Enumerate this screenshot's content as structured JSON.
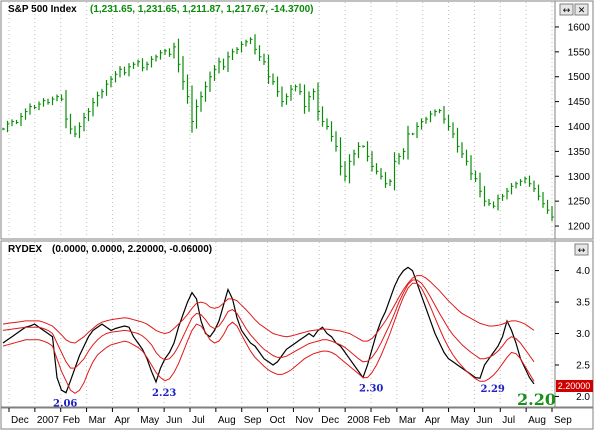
{
  "colors": {
    "price": "#0a8c0a",
    "indicator": "#000000",
    "bands": "#e01818",
    "grid": "#bdbdbd",
    "annotation": "#2020c8",
    "callout": "#1a8f1a",
    "last_value_bg": "#d00000"
  },
  "window_controls": {
    "top": [
      "↔",
      "✕"
    ],
    "bottom": [
      "↔"
    ]
  },
  "chart_data": [
    {
      "type": "line",
      "title_name": "S&P 500 Index",
      "title_values": "(1,231.65, 1,231.65, 1,211.87, 1,217.67, -14.3700)",
      "y_ticks": [
        1200,
        1250,
        1300,
        1350,
        1400,
        1450,
        1500,
        1550,
        1600
      ],
      "ylim": [
        1180,
        1622
      ],
      "grid": "vertical dotted",
      "series": [
        {
          "values": [
            1395,
            1405,
            1410,
            1408,
            1420,
            1430,
            1440,
            1438,
            1445,
            1452,
            1448,
            1455,
            1460,
            1455,
            1415,
            1395,
            1385,
            1400,
            1418,
            1430,
            1448,
            1462,
            1470,
            1485,
            1495,
            1505,
            1515,
            1508,
            1520,
            1525,
            1530,
            1518,
            1525,
            1535,
            1540,
            1548,
            1552,
            1545,
            1560,
            1525,
            1490,
            1460,
            1410,
            1440,
            1460,
            1480,
            1500,
            1515,
            1530,
            1520,
            1540,
            1550,
            1555,
            1565,
            1570,
            1575,
            1555,
            1540,
            1530,
            1500,
            1490,
            1470,
            1450,
            1460,
            1475,
            1480,
            1470,
            1440,
            1460,
            1470,
            1430,
            1410,
            1400,
            1380,
            1360,
            1320,
            1300,
            1330,
            1345,
            1360,
            1360,
            1340,
            1320,
            1310,
            1300,
            1285,
            1290,
            1330,
            1340,
            1350,
            1385,
            1385,
            1400,
            1410,
            1415,
            1425,
            1430,
            1432,
            1415,
            1400,
            1385,
            1360,
            1345,
            1330,
            1305,
            1295,
            1270,
            1250,
            1245,
            1240,
            1255,
            1260,
            1270,
            1280,
            1285,
            1290,
            1295,
            1285,
            1275,
            1260,
            1245,
            1232,
            1218
          ]
        }
      ]
    },
    {
      "type": "line",
      "title_name": "RYDEX",
      "title_values": "(0.0000, 0.0000, 2.20000, -0.06000)",
      "y_ticks": [
        2.0,
        2.5,
        3.0,
        3.5,
        4.0
      ],
      "ylim": [
        1.88,
        4.2
      ],
      "x_tick_labels": [
        "Dec",
        "2007",
        "Feb",
        "Mar",
        "Apr",
        "May",
        "Jun",
        "Jul",
        "Aug",
        "Sep",
        "Oct",
        "Nov",
        "Dec",
        "2008",
        "Feb",
        "Mar",
        "Apr",
        "May",
        "Jun",
        "Jul",
        "Aug",
        "Sep"
      ],
      "last_value": "2.20000",
      "callout": "2.20",
      "annotations": [
        {
          "text": "2.06",
          "x": 12.0,
          "y": 2.06
        },
        {
          "text": "2.23",
          "x": 34.0,
          "y": 2.23
        },
        {
          "text": "2.30",
          "x": 80.0,
          "y": 2.3
        },
        {
          "text": "2.29",
          "x": 107.0,
          "y": 2.29
        }
      ],
      "series": [
        {
          "values": [
            2.85,
            2.9,
            2.95,
            3.0,
            3.05,
            3.1,
            3.12,
            3.15,
            3.1,
            3.05,
            3.0,
            2.95,
            2.3,
            2.1,
            2.06,
            2.25,
            2.45,
            2.65,
            2.8,
            2.95,
            3.05,
            3.1,
            3.15,
            3.1,
            3.05,
            3.08,
            3.1,
            3.12,
            3.1,
            2.95,
            2.85,
            2.75,
            2.6,
            2.4,
            2.23,
            2.45,
            2.6,
            2.7,
            2.85,
            3.1,
            3.3,
            3.5,
            3.65,
            3.55,
            3.2,
            3.0,
            2.95,
            3.05,
            3.2,
            3.45,
            3.7,
            3.55,
            3.25,
            3.05,
            2.95,
            2.85,
            2.8,
            2.7,
            2.6,
            2.55,
            2.5,
            2.55,
            2.65,
            2.75,
            2.8,
            2.85,
            2.9,
            2.95,
            3.0,
            2.95,
            3.05,
            3.1,
            3.0,
            2.95,
            2.85,
            2.8,
            2.7,
            2.6,
            2.5,
            2.4,
            2.3,
            2.5,
            2.75,
            3.0,
            3.2,
            3.35,
            3.55,
            3.75,
            3.9,
            4.0,
            4.05,
            4.0,
            3.8,
            3.6,
            3.4,
            3.2,
            3.0,
            2.85,
            2.7,
            2.6,
            2.55,
            2.5,
            2.45,
            2.4,
            2.35,
            2.3,
            2.29,
            2.5,
            2.6,
            2.7,
            2.8,
            2.95,
            3.2,
            3.05,
            2.85,
            2.6,
            2.45,
            2.3,
            2.2
          ]
        },
        {
          "values": [
            3.15,
            3.16,
            3.17,
            3.18,
            3.19,
            3.2,
            3.2,
            3.2,
            3.2,
            3.18,
            3.15,
            3.12,
            3.05,
            2.98,
            2.9,
            2.86,
            2.85,
            2.9,
            2.95,
            3.02,
            3.08,
            3.14,
            3.18,
            3.2,
            3.22,
            3.23,
            3.24,
            3.25,
            3.24,
            3.22,
            3.2,
            3.18,
            3.15,
            3.1,
            3.05,
            3.02,
            3.0,
            3.02,
            3.08,
            3.15,
            3.22,
            3.3,
            3.4,
            3.48,
            3.5,
            3.48,
            3.42,
            3.4,
            3.42,
            3.48,
            3.55,
            3.55,
            3.52,
            3.45,
            3.38,
            3.3,
            3.22,
            3.15,
            3.1,
            3.05,
            3.0,
            2.98,
            2.96,
            2.95,
            2.96,
            2.98,
            3.0,
            3.02,
            3.04,
            3.05,
            3.06,
            3.07,
            3.07,
            3.06,
            3.05,
            3.04,
            3.02,
            3.0,
            2.96,
            2.92,
            2.88,
            2.88,
            2.92,
            3.0,
            3.1,
            3.2,
            3.32,
            3.45,
            3.58,
            3.7,
            3.8,
            3.88,
            3.92,
            3.92,
            3.88,
            3.82,
            3.75,
            3.68,
            3.6,
            3.52,
            3.45,
            3.38,
            3.32,
            3.28,
            3.24,
            3.2,
            3.16,
            3.14,
            3.12,
            3.12,
            3.13,
            3.15,
            3.18,
            3.2,
            3.2,
            3.18,
            3.15,
            3.1,
            3.05
          ]
        },
        {
          "values": [
            3.05,
            3.06,
            3.07,
            3.08,
            3.09,
            3.1,
            3.1,
            3.1,
            3.1,
            3.08,
            3.05,
            3.0,
            2.85,
            2.7,
            2.55,
            2.45,
            2.45,
            2.52,
            2.6,
            2.72,
            2.82,
            2.9,
            2.96,
            3.0,
            3.02,
            3.03,
            3.04,
            3.05,
            3.04,
            3.02,
            3.0,
            2.96,
            2.9,
            2.82,
            2.7,
            2.62,
            2.58,
            2.6,
            2.68,
            2.8,
            2.95,
            3.1,
            3.25,
            3.32,
            3.3,
            3.22,
            3.12,
            3.08,
            3.12,
            3.22,
            3.35,
            3.38,
            3.32,
            3.2,
            3.08,
            2.98,
            2.9,
            2.82,
            2.75,
            2.7,
            2.65,
            2.62,
            2.62,
            2.64,
            2.68,
            2.72,
            2.76,
            2.8,
            2.84,
            2.86,
            2.88,
            2.9,
            2.9,
            2.88,
            2.85,
            2.82,
            2.78,
            2.72,
            2.66,
            2.6,
            2.55,
            2.56,
            2.62,
            2.72,
            2.85,
            3.0,
            3.15,
            3.32,
            3.5,
            3.65,
            3.78,
            3.85,
            3.85,
            3.8,
            3.7,
            3.58,
            3.45,
            3.32,
            3.2,
            3.08,
            2.98,
            2.9,
            2.82,
            2.76,
            2.7,
            2.65,
            2.6,
            2.6,
            2.62,
            2.66,
            2.72,
            2.8,
            2.9,
            2.95,
            2.92,
            2.85,
            2.75,
            2.65,
            2.55
          ]
        },
        {
          "values": [
            2.8,
            2.82,
            2.84,
            2.86,
            2.88,
            2.9,
            2.9,
            2.9,
            2.9,
            2.88,
            2.85,
            2.8,
            2.6,
            2.4,
            2.25,
            2.1,
            2.05,
            2.1,
            2.22,
            2.4,
            2.55,
            2.66,
            2.72,
            2.78,
            2.82,
            2.84,
            2.86,
            2.88,
            2.86,
            2.82,
            2.78,
            2.72,
            2.62,
            2.5,
            2.38,
            2.3,
            2.25,
            2.28,
            2.38,
            2.52,
            2.7,
            2.88,
            3.05,
            3.15,
            3.12,
            3.02,
            2.9,
            2.85,
            2.88,
            2.98,
            3.12,
            3.18,
            3.12,
            2.98,
            2.85,
            2.72,
            2.62,
            2.55,
            2.48,
            2.42,
            2.38,
            2.35,
            2.35,
            2.38,
            2.42,
            2.48,
            2.54,
            2.6,
            2.64,
            2.68,
            2.7,
            2.72,
            2.72,
            2.7,
            2.66,
            2.6,
            2.54,
            2.48,
            2.42,
            2.36,
            2.3,
            2.3,
            2.38,
            2.5,
            2.65,
            2.82,
            3.0,
            3.2,
            3.4,
            3.58,
            3.72,
            3.8,
            3.8,
            3.72,
            3.58,
            3.42,
            3.25,
            3.08,
            2.92,
            2.78,
            2.66,
            2.56,
            2.48,
            2.4,
            2.34,
            2.28,
            2.24,
            2.24,
            2.28,
            2.34,
            2.42,
            2.52,
            2.62,
            2.7,
            2.68,
            2.6,
            2.48,
            2.36,
            2.24
          ]
        }
      ]
    }
  ]
}
